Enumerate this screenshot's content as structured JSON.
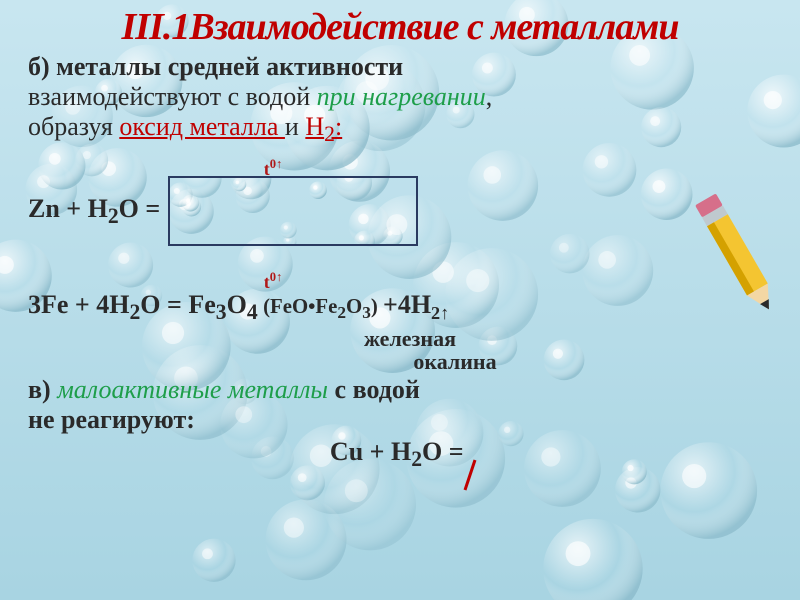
{
  "colors": {
    "page_bg_top": "#c8e6f0",
    "page_bg_bottom": "#a8d4e2",
    "bubble_hi": "#ffffff",
    "bubble_shadow": "#88b8c8",
    "title_red": "#c00000",
    "italic_green": "#1e9e4a",
    "underline_red": "#c00000",
    "text_black": "#2a2a2a",
    "box_border": "#2a3a60",
    "sup_red": "#b01818",
    "pencil_yellow": "#f4c531",
    "pencil_shade": "#d4a100",
    "pencil_wood": "#f3d7a4",
    "pencil_tip": "#2a2a2a",
    "eraser_metal": "#bfc9cf",
    "eraser_pink": "#d66f8a"
  },
  "fonts": {
    "title_size": 38,
    "body_size": 26,
    "sup_size": 18,
    "caption_size": 22
  },
  "title": "III.1Взаимодействие с металлами",
  "line_b_prefix": "б) ",
  "line_b_bold": "металлы средней  активности",
  "line_b_plain1": "взаимодействуют с водой ",
  "line_b_green": "при нагревании",
  "line_b_plain2": ",",
  "line_b_plain3": "образуя ",
  "line_b_red1": "оксид металла ",
  "line_b_plain4": "и ",
  "line_b_red2": "Н",
  "line_b_red2_sub": "2",
  "line_b_red2_colon": ":",
  "sup_t": "t",
  "sup_zero_arrow": "0↑",
  "eq1_lhs": "Zn  +  H",
  "eq1_sub": "2",
  "eq1_o": "O  =",
  "eq2_lhs1": "3Fe + 4H",
  "eq2_sub1": "2",
  "eq2_o1": "O = Fe",
  "eq2_sub2": "3",
  "eq2_o2": "O",
  "eq2_sub3": "4 ",
  "eq2_small_open": "(FeO",
  "eq2_dot": "•",
  "eq2_small_mid": "Fe",
  "eq2_small_sub1": "2",
  "eq2_small_o": "O",
  "eq2_small_sub2": "3",
  "eq2_small_close": ") ",
  "eq2_tail": "+4H",
  "eq2_tail2": "2↑",
  "caption1": "железная",
  "caption2": "окалина",
  "line_c_prefix": "в) ",
  "line_c_green": "малоактивные металлы",
  "line_c_rest1": " с водой",
  "line_c_rest2": "не реагируют:",
  "eq3_lhs": "Cu + H",
  "eq3_sub": "2",
  "eq3_o": "O =",
  "slash_color": "#c00000"
}
